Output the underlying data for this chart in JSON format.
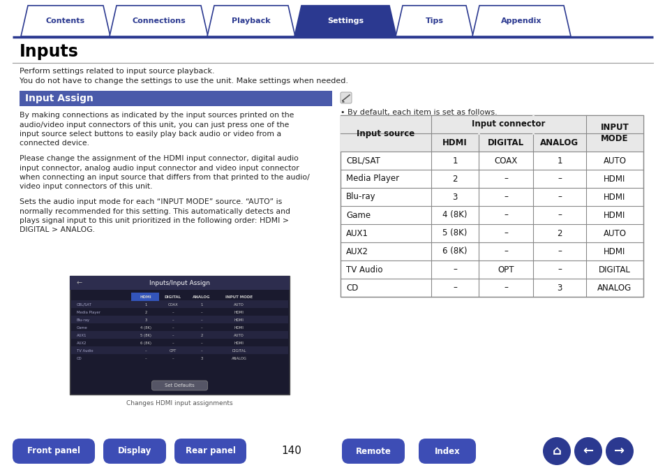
{
  "title": "Inputs",
  "subtitle1": "Perform settings related to input source playback.",
  "subtitle2": "You do not have to change the settings to use the unit. Make settings when needed.",
  "section_title": "Input Assign",
  "body_paragraphs": [
    "By making connections as indicated by the input sources printed on the\naudio/video input connectors of this unit, you can just press one of the\ninput source select buttons to easily play back audio or video from a\nconnected device.",
    "Please change the assignment of the HDMI input connector, digital audio\ninput connector, analog audio input connector and video input connector\nwhen connecting an input source that differs from that printed to the audio/\nvideo input connectors of this unit.",
    "Sets the audio input mode for each “INPUT MODE” source. “AUTO” is\nnormally recommended for this setting. This automatically detects and\nplays signal input to this unit prioritized in the following order: HDMI >\nDIGITAL > ANALOG."
  ],
  "note_text": "• By default, each item is set as follows.",
  "table_data": [
    [
      "CBL/SAT",
      "1",
      "COAX",
      "1",
      "AUTO"
    ],
    [
      "Media Player",
      "2",
      "–",
      "–",
      "HDMI"
    ],
    [
      "Blu-ray",
      "3",
      "–",
      "–",
      "HDMI"
    ],
    [
      "Game",
      "4 (8K)",
      "–",
      "–",
      "HDMI"
    ],
    [
      "AUX1",
      "5 (8K)",
      "–",
      "2",
      "AUTO"
    ],
    [
      "AUX2",
      "6 (8K)",
      "–",
      "–",
      "HDMI"
    ],
    [
      "TV Audio",
      "–",
      "OPT",
      "–",
      "DIGITAL"
    ],
    [
      "CD",
      "–",
      "–",
      "3",
      "ANALOG"
    ]
  ],
  "nav_tabs": [
    "Contents",
    "Connections",
    "Playback",
    "Settings",
    "Tips",
    "Appendix"
  ],
  "active_tab": "Settings",
  "bottom_buttons": [
    "Front panel",
    "Display",
    "Rear panel",
    "Remote",
    "Index"
  ],
  "page_number": "140",
  "tab_color_active": "#2b3990",
  "tab_color_inactive": "#ffffff",
  "tab_text_active": "#ffffff",
  "tab_text_inactive": "#2b3990",
  "tab_border_color": "#2b3990",
  "section_bg_color": "#4a5aaa",
  "section_text_color": "#ffffff",
  "bottom_btn_color": "#3d4db5",
  "bottom_btn_text_color": "#ffffff",
  "table_header_bg": "#e8e8e8",
  "table_border_color": "#888888",
  "hr_color": "#999999",
  "bg_color": "#ffffff",
  "body_text_color": "#222222",
  "title_color": "#000000",
  "screenshot_bg": "#1a1a2e",
  "screenshot_header": "#2d2d4e"
}
